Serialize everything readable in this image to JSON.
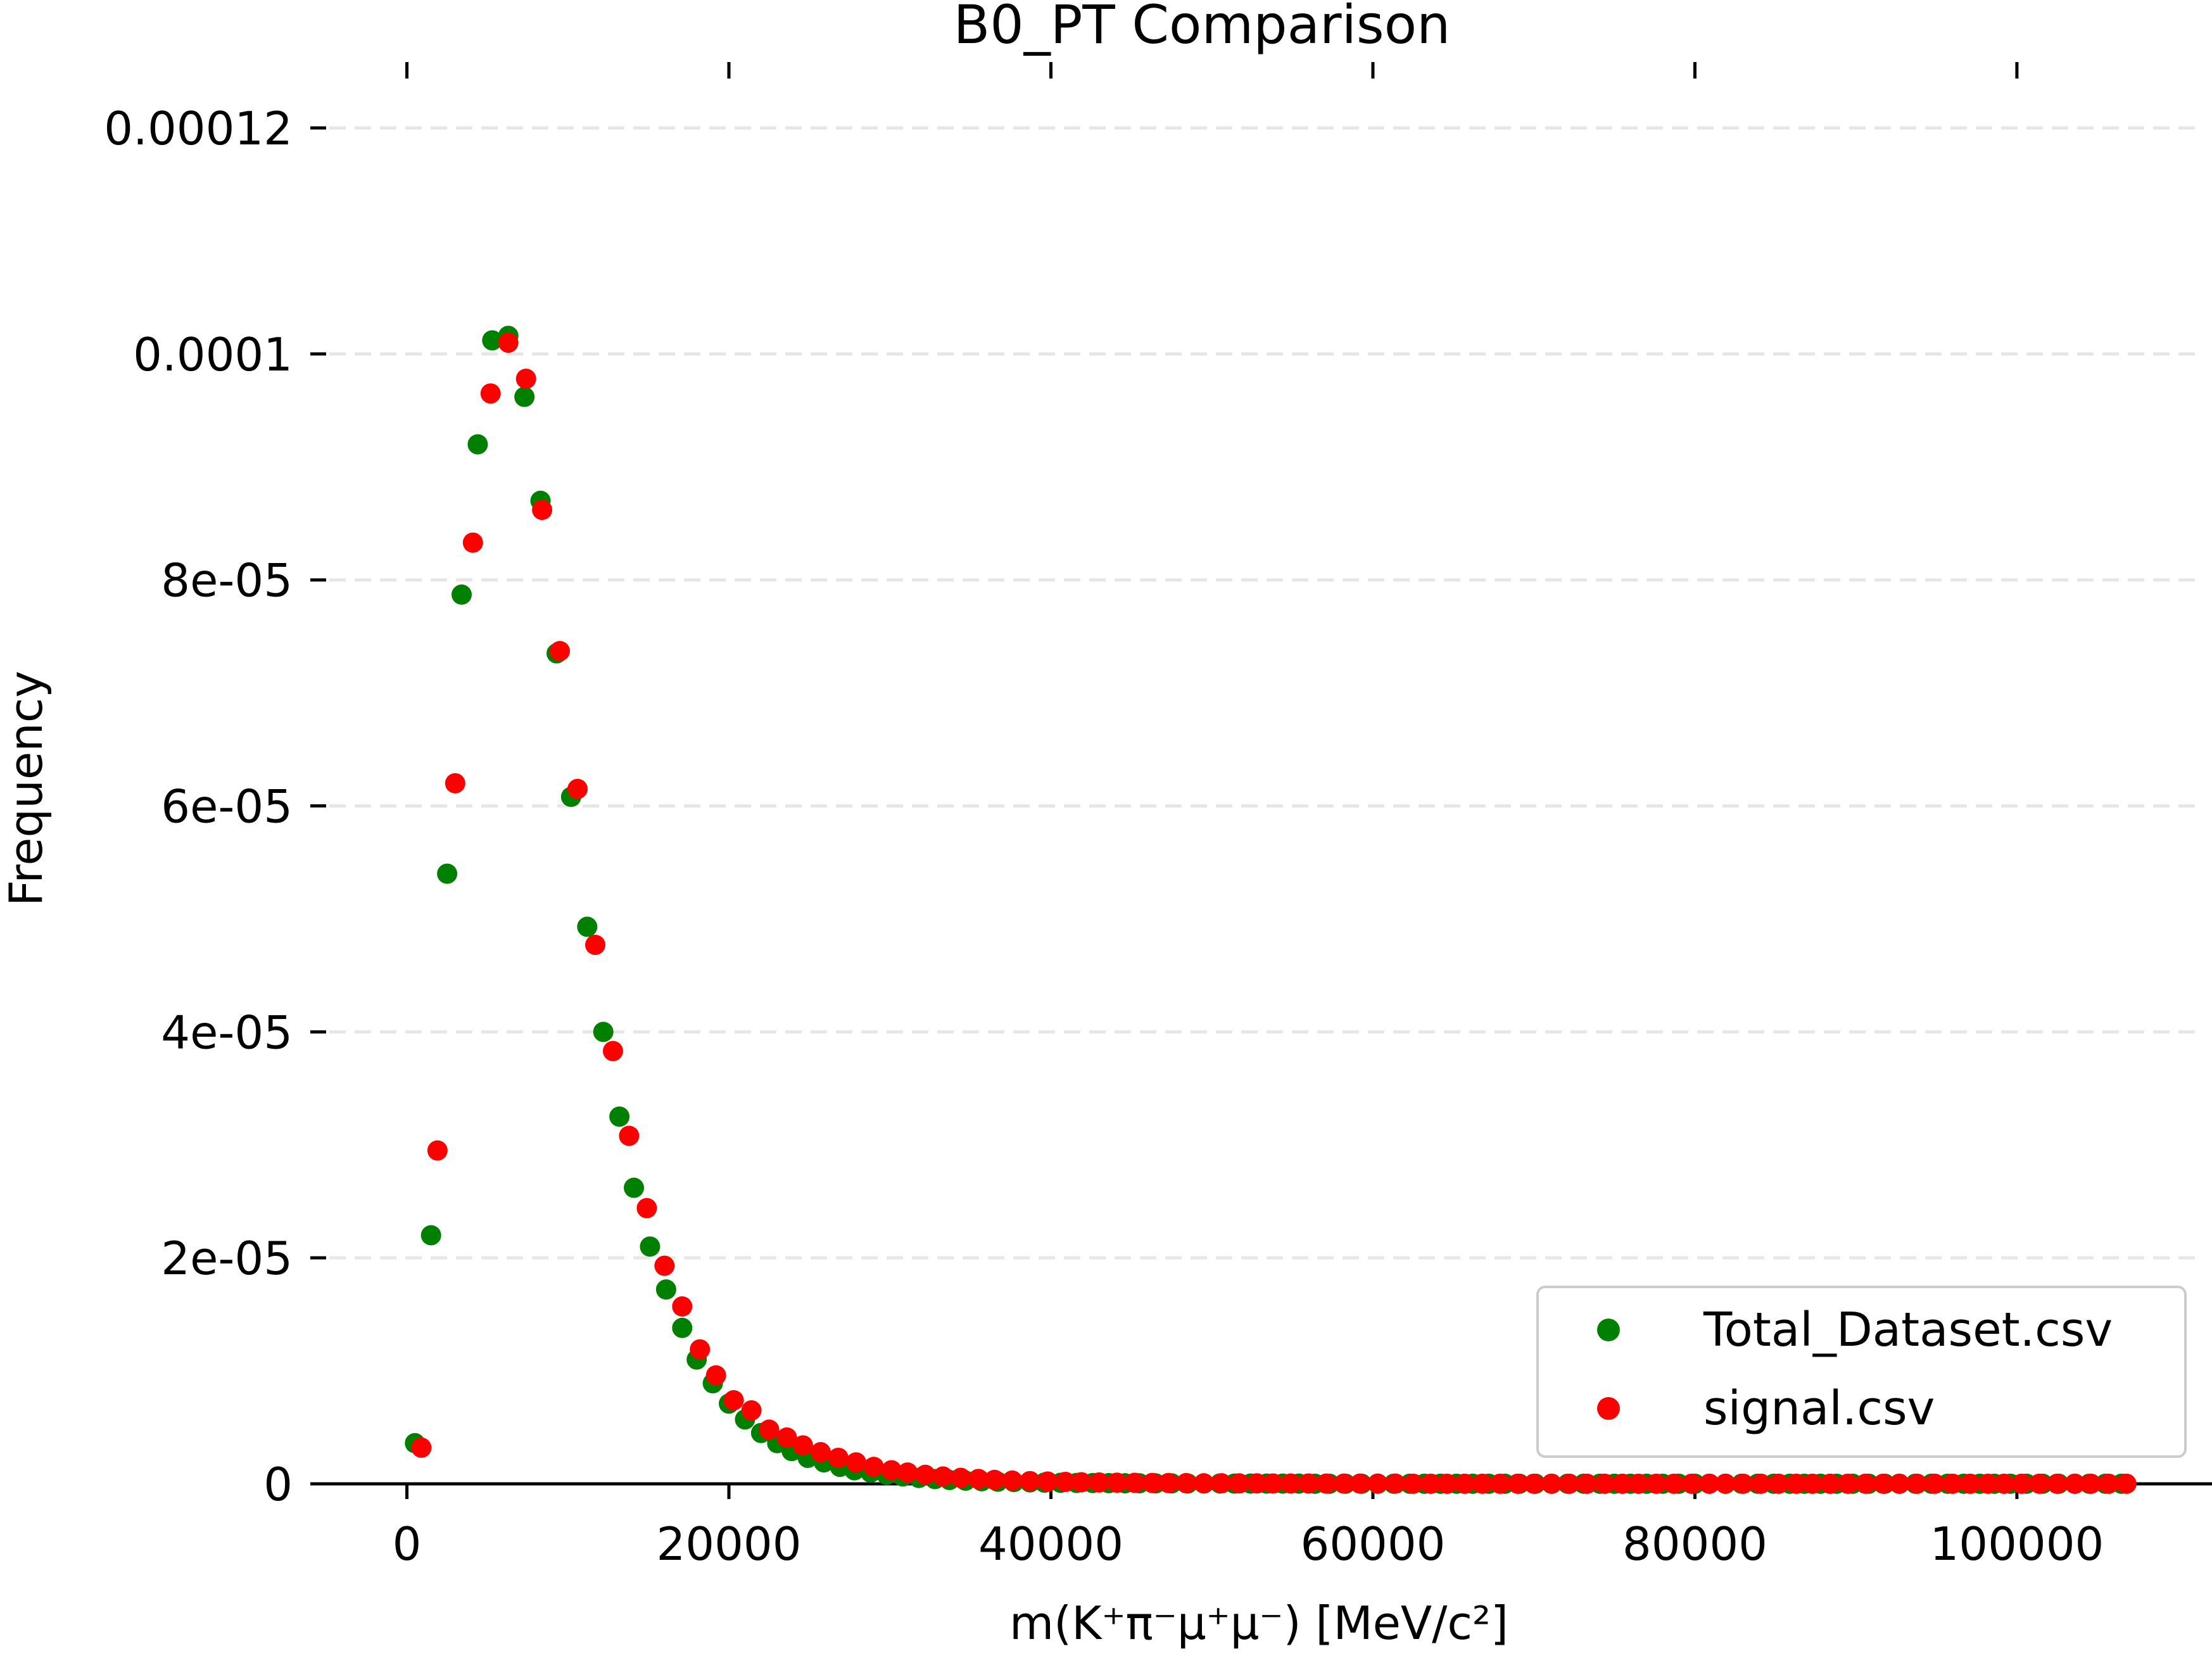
{
  "chart_data": {
    "type": "scatter",
    "title": "B0_PT Comparison",
    "xlabel": "m(K⁺π⁻μ⁺μ⁻) [MeV/c²]",
    "ylabel": "Frequency",
    "xlim": [
      -6000,
      112000
    ],
    "ylim": [
      0,
      0.000126
    ],
    "x_ticks": [
      0,
      20000,
      40000,
      60000,
      80000,
      100000
    ],
    "x_tick_labels": [
      "0",
      "20000",
      "40000",
      "60000",
      "80000",
      "100000"
    ],
    "y_ticks": [
      0,
      2e-05,
      4e-05,
      6e-05,
      8e-05,
      0.0001,
      0.00012
    ],
    "y_tick_labels": [
      "0",
      "2e-05",
      "4e-05",
      "6e-05",
      "8e-05",
      "0.0001",
      "0.00012"
    ],
    "grid": "horizontal dashed",
    "legend_position": "lower right",
    "series": [
      {
        "name": "Total_Dataset.csv",
        "color": "#008000",
        "x": [
          500,
          1500,
          2500,
          3400,
          4400,
          5300,
          6300,
          7300,
          8300,
          9300,
          10200,
          11200,
          12200,
          13200,
          14100,
          15100,
          16100,
          17100,
          18000,
          19000,
          20000,
          21000,
          22000,
          23000,
          23900,
          24900,
          25900,
          26900,
          27800,
          28800,
          29800,
          30800,
          31800,
          32800,
          33700,
          34700,
          35700,
          36700,
          37700,
          38700,
          39600,
          40600,
          41600,
          42600,
          43600,
          44600,
          45500,
          46500,
          47500,
          48500,
          49500,
          50500,
          51400,
          52400,
          53400,
          54400,
          55400,
          56400,
          57300,
          58300,
          59300,
          60300,
          61300,
          62300,
          63200,
          64200,
          65200,
          66200,
          67200,
          68200,
          69100,
          70100,
          71100,
          72100,
          73100,
          74100,
          75000,
          76000,
          77000,
          78000,
          79000,
          80000,
          80900,
          81900,
          82900,
          83900,
          84900,
          85900,
          86800,
          87800,
          88800,
          89800,
          90800,
          91800,
          92700,
          93700,
          94700,
          95700,
          96700,
          97700,
          98600,
          99600,
          100600,
          101600,
          102600,
          103600,
          104500,
          105500,
          106500
        ],
        "y": [
          3.6e-06,
          2.2e-05,
          5.4e-05,
          7.87e-05,
          9.2e-05,
          0.0001012,
          0.0001016,
          9.62e-05,
          8.7e-05,
          7.35e-05,
          6.08e-05,
          4.93e-05,
          4e-05,
          3.25e-05,
          2.62e-05,
          2.1e-05,
          1.72e-05,
          1.38e-05,
          1.1e-05,
          8.9e-06,
          7.1e-06,
          5.7e-06,
          4.5e-06,
          3.6e-06,
          2.9e-06,
          2.3e-06,
          1.9e-06,
          1.5e-06,
          1.2e-06,
          1e-06,
          8e-07,
          6.5e-07,
          5.2e-07,
          4.2e-07,
          3.4e-07,
          2.8e-07,
          2.3e-07,
          1.9e-07,
          1.6e-07,
          1.3e-07,
          1.1e-07,
          9e-08,
          8e-08,
          7e-08,
          6e-08,
          5e-08,
          5e-08,
          4e-08,
          4e-08,
          3e-08,
          3e-08,
          3e-08,
          2e-08,
          2e-08,
          2e-08,
          2e-08,
          2e-08,
          1e-08,
          1e-08,
          1e-08,
          1e-08,
          1e-08,
          1e-08,
          1e-08,
          1e-08,
          1e-08,
          1e-08,
          1e-08,
          1e-08,
          1e-08,
          1e-08,
          1e-08,
          1e-08,
          1e-08,
          1e-08,
          1e-08,
          1e-08,
          1e-08,
          1e-08,
          1e-08,
          1e-08,
          1e-08,
          1e-08,
          1e-08,
          1e-08,
          1e-08,
          1e-08,
          1e-08,
          1e-08,
          1e-08,
          1e-08,
          1e-08,
          1e-08,
          1e-08,
          1e-08,
          1e-08,
          1e-08,
          1e-08,
          1e-08,
          1e-08,
          1e-08,
          1e-08,
          1e-08,
          1e-08,
          1e-08,
          1e-08,
          1e-08,
          1e-08,
          1e-08
        ]
      },
      {
        "name": "signal.csv",
        "color": "#ff0000",
        "x": [
          900,
          1900,
          3000,
          4100,
          5200,
          6300,
          7400,
          8400,
          9500,
          10600,
          11700,
          12800,
          13800,
          14900,
          16000,
          17100,
          18200,
          19200,
          20300,
          21400,
          22500,
          23600,
          24600,
          25700,
          26800,
          27900,
          29000,
          30100,
          31100,
          32200,
          33300,
          34400,
          35500,
          36500,
          37600,
          38700,
          39800,
          40900,
          41900,
          43000,
          44100,
          45200,
          46300,
          47300,
          48400,
          49500,
          50600,
          51700,
          52800,
          53800,
          54900,
          56000,
          57100,
          58200,
          59200,
          60300,
          61400,
          62500,
          63600,
          64600,
          65700,
          66800,
          67900,
          69000,
          70000,
          71100,
          72200,
          73300,
          74400,
          75500,
          76500,
          77600,
          78700,
          79800,
          80900,
          81900,
          83000,
          84100,
          85200,
          86300,
          87300,
          88400,
          89500,
          90600,
          91700,
          92700,
          93800,
          94900,
          96000,
          97100,
          98200,
          99200,
          100300,
          101400,
          102500,
          103600,
          104600,
          105700,
          106800
        ],
        "y": [
          3.2e-06,
          2.95e-05,
          6.2e-05,
          8.33e-05,
          9.65e-05,
          0.000101,
          9.78e-05,
          8.62e-05,
          7.37e-05,
          6.15e-05,
          4.77e-05,
          3.83e-05,
          3.08e-05,
          2.44e-05,
          1.93e-05,
          1.57e-05,
          1.19e-05,
          9.6e-06,
          7.4e-06,
          6.5e-06,
          4.8e-06,
          4.1e-06,
          3.4e-06,
          2.8e-06,
          2.3e-06,
          1.9e-06,
          1.5e-06,
          1.2e-06,
          1e-06,
          8e-07,
          6.5e-07,
          5.3e-07,
          4.3e-07,
          3.5e-07,
          2.9e-07,
          2.4e-07,
          2e-07,
          1.7e-07,
          1.4e-07,
          1.2e-07,
          1e-07,
          9e-08,
          8e-08,
          7e-08,
          6e-08,
          5e-08,
          5e-08,
          4e-08,
          4e-08,
          3e-08,
          3e-08,
          3e-08,
          2e-08,
          2e-08,
          2e-08,
          2e-08,
          2e-08,
          1e-08,
          1e-08,
          1e-08,
          1e-08,
          1e-08,
          1e-08,
          1e-08,
          1e-08,
          1e-08,
          1e-08,
          1e-08,
          1e-08,
          1e-08,
          1e-08,
          1e-08,
          1e-08,
          1e-08,
          1e-08,
          1e-08,
          1e-08,
          1e-08,
          1e-08,
          1e-08,
          1e-08,
          1e-08,
          1e-08,
          1e-08,
          1e-08,
          1e-08,
          1e-08,
          1e-08,
          1e-08,
          1e-08,
          1e-08,
          1e-08,
          1e-08,
          1e-08,
          1e-08,
          1e-08,
          1e-08,
          1e-08,
          1e-08
        ]
      }
    ]
  }
}
